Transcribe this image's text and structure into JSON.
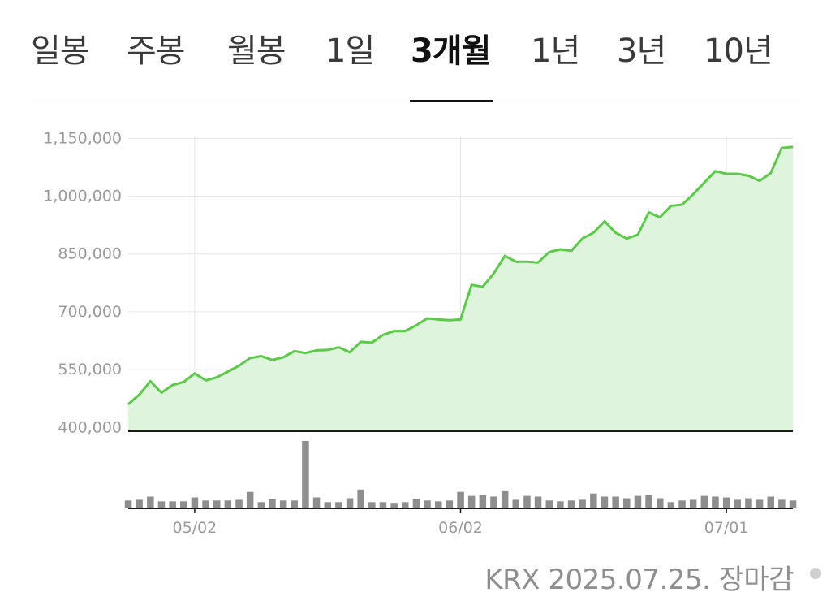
{
  "tabs": [
    {
      "label": "일봉",
      "active": false
    },
    {
      "label": "주봉",
      "active": false
    },
    {
      "label": "월봉",
      "active": false
    },
    {
      "label": "1일",
      "active": false
    },
    {
      "label": "3개월",
      "active": true
    },
    {
      "label": "1년",
      "active": false
    },
    {
      "label": "3년",
      "active": false
    },
    {
      "label": "10년",
      "active": false
    }
  ],
  "footer": {
    "text": "KRX 2025.07.25. 장마감"
  },
  "colors": {
    "line": "#5cc94a",
    "area": "#dff4dc",
    "volume": "#8e8e8e",
    "grid": "#e6e6e6",
    "axis": "#1a1a1a"
  },
  "chart_data": {
    "type": "area",
    "yticks": [
      {
        "value": 1150000,
        "label": "1,150,000"
      },
      {
        "value": 1000000,
        "label": "1,000,000"
      },
      {
        "value": 850000,
        "label": "850,000"
      },
      {
        "value": 700000,
        "label": "700,000"
      },
      {
        "value": 550000,
        "label": "550,000"
      },
      {
        "value": 400000,
        "label": "400,000"
      }
    ],
    "ylim": [
      390000,
      1155000
    ],
    "xticks": [
      {
        "index": 6,
        "label": "05/02"
      },
      {
        "index": 30,
        "label": "06/02"
      },
      {
        "index": 54,
        "label": "07/01"
      }
    ],
    "grid": true,
    "price": [
      460000,
      485000,
      520000,
      490000,
      510000,
      518000,
      540000,
      522000,
      530000,
      545000,
      560000,
      580000,
      585000,
      575000,
      582000,
      598000,
      593000,
      600000,
      601000,
      608000,
      595000,
      622000,
      620000,
      640000,
      650000,
      650000,
      665000,
      683000,
      680000,
      678000,
      680000,
      770000,
      765000,
      800000,
      845000,
      830000,
      830000,
      828000,
      855000,
      862000,
      858000,
      890000,
      905000,
      935000,
      905000,
      890000,
      900000,
      958000,
      945000,
      975000,
      978000,
      1005000,
      1035000,
      1065000,
      1058000,
      1058000,
      1053000,
      1040000,
      1060000,
      1125000,
      1128000
    ],
    "volume": [
      10,
      11,
      15,
      9,
      9,
      9,
      14,
      10,
      10,
      10,
      11,
      21,
      8,
      12,
      10,
      10,
      86,
      14,
      8,
      8,
      13,
      24,
      8,
      8,
      7,
      8,
      12,
      10,
      9,
      10,
      21,
      16,
      17,
      15,
      23,
      11,
      16,
      15,
      10,
      9,
      10,
      11,
      19,
      15,
      15,
      13,
      16,
      17,
      13,
      8,
      10,
      11,
      16,
      15,
      14,
      11,
      13,
      11,
      15,
      11,
      10
    ]
  }
}
